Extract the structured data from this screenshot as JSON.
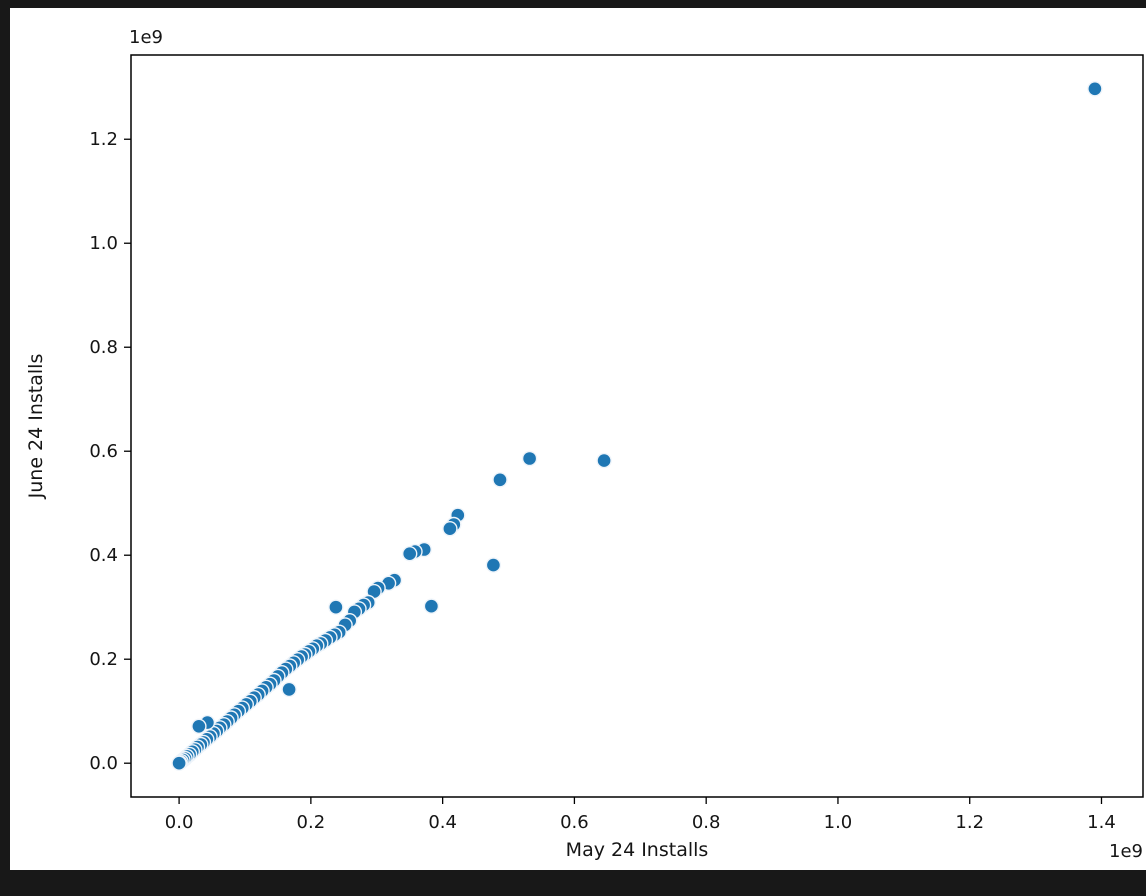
{
  "window": {
    "background_color": "#181818",
    "figure_background_color": "#ffffff"
  },
  "chart_data": {
    "type": "scatter",
    "title": "",
    "xlabel": "May 24 Installs",
    "ylabel": "June 24 Installs",
    "x_offset_text": "1e9",
    "y_offset_text": "1e9",
    "unit_scale": 1000000000,
    "units_note": "point coordinates are in billions (1e9) of installs, matching axis offset text",
    "xlim": [
      -0.073,
      1.463
    ],
    "ylim": [
      -0.065,
      1.362
    ],
    "xticks": [
      0.0,
      0.2,
      0.4,
      0.6,
      0.8,
      1.0,
      1.2,
      1.4
    ],
    "xtick_labels": [
      "0.0",
      "0.2",
      "0.4",
      "0.6",
      "0.8",
      "1.0",
      "1.2",
      "1.4"
    ],
    "yticks": [
      0.0,
      0.2,
      0.4,
      0.6,
      0.8,
      1.0,
      1.2
    ],
    "ytick_labels": [
      "0.0",
      "0.2",
      "0.4",
      "0.6",
      "0.8",
      "1.0",
      "1.2"
    ],
    "grid": false,
    "legend": null,
    "colors": {
      "point": "#1f77b4",
      "point_edge": "#eef4fa",
      "spine": "#000000",
      "tick_text": "#151515"
    },
    "marker_radius": 7,
    "points": [
      [
        1.39,
        1.297
      ],
      [
        0.645,
        0.582
      ],
      [
        0.532,
        0.586
      ],
      [
        0.487,
        0.545
      ],
      [
        0.477,
        0.381
      ],
      [
        0.423,
        0.477
      ],
      [
        0.417,
        0.459
      ],
      [
        0.411,
        0.451
      ],
      [
        0.383,
        0.302
      ],
      [
        0.372,
        0.411
      ],
      [
        0.358,
        0.407
      ],
      [
        0.35,
        0.403
      ],
      [
        0.327,
        0.352
      ],
      [
        0.318,
        0.346
      ],
      [
        0.302,
        0.337
      ],
      [
        0.296,
        0.33
      ],
      [
        0.287,
        0.309
      ],
      [
        0.28,
        0.304
      ],
      [
        0.273,
        0.297
      ],
      [
        0.266,
        0.291
      ],
      [
        0.259,
        0.274
      ],
      [
        0.252,
        0.266
      ],
      [
        0.238,
        0.3
      ],
      [
        0.243,
        0.252
      ],
      [
        0.236,
        0.247
      ],
      [
        0.229,
        0.242
      ],
      [
        0.222,
        0.236
      ],
      [
        0.215,
        0.23
      ],
      [
        0.209,
        0.226
      ],
      [
        0.203,
        0.22
      ],
      [
        0.197,
        0.215
      ],
      [
        0.191,
        0.209
      ],
      [
        0.186,
        0.205
      ],
      [
        0.18,
        0.199
      ],
      [
        0.174,
        0.193
      ],
      [
        0.168,
        0.187
      ],
      [
        0.167,
        0.142
      ],
      [
        0.162,
        0.181
      ],
      [
        0.156,
        0.174
      ],
      [
        0.15,
        0.167
      ],
      [
        0.144,
        0.159
      ],
      [
        0.138,
        0.152
      ],
      [
        0.132,
        0.146
      ],
      [
        0.126,
        0.139
      ],
      [
        0.12,
        0.132
      ],
      [
        0.114,
        0.126
      ],
      [
        0.108,
        0.119
      ],
      [
        0.102,
        0.113
      ],
      [
        0.096,
        0.106
      ],
      [
        0.09,
        0.1
      ],
      [
        0.084,
        0.093
      ],
      [
        0.079,
        0.087
      ],
      [
        0.073,
        0.08
      ],
      [
        0.068,
        0.074
      ],
      [
        0.062,
        0.068
      ],
      [
        0.057,
        0.062
      ],
      [
        0.052,
        0.057
      ],
      [
        0.047,
        0.051
      ],
      [
        0.043,
        0.078
      ],
      [
        0.042,
        0.046
      ],
      [
        0.037,
        0.04
      ],
      [
        0.033,
        0.036
      ],
      [
        0.03,
        0.071
      ],
      [
        0.028,
        0.031
      ],
      [
        0.024,
        0.026
      ],
      [
        0.02,
        0.022
      ],
      [
        0.016,
        0.017
      ],
      [
        0.012,
        0.013
      ],
      [
        0.009,
        0.009
      ],
      [
        0.006,
        0.006
      ],
      [
        0.003,
        0.003
      ],
      [
        0.001,
        0.001
      ],
      [
        0.0,
        0.0
      ]
    ]
  }
}
